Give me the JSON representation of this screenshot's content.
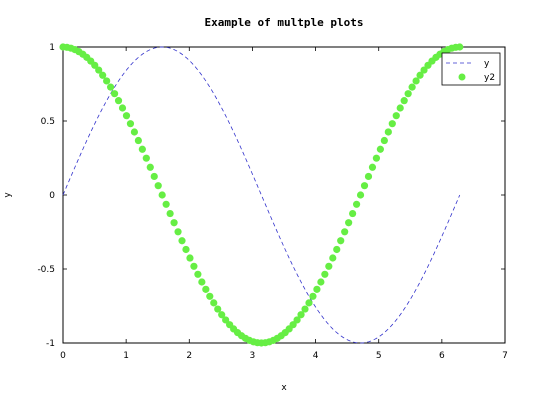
{
  "chart_data": {
    "type": "line",
    "title": "Example of multple plots",
    "xlabel": "x",
    "ylabel": "y",
    "xlim": [
      0,
      7
    ],
    "ylim": [
      -1,
      1
    ],
    "xticks": [
      "0",
      "1",
      "2",
      "3",
      "4",
      "5",
      "6",
      "7"
    ],
    "yticks": [
      "-1",
      "-0.5",
      "0",
      "0.5",
      "1"
    ],
    "legend_position": "top-right",
    "series": [
      {
        "name": "y",
        "style": "dashed-line",
        "color": "#3333cc",
        "function": "sin(x)",
        "x_range": [
          0,
          6.2832
        ],
        "x": [
          0,
          0.5,
          1,
          1.5708,
          2,
          2.5,
          3,
          3.5,
          4,
          4.7124,
          5,
          5.5,
          6,
          6.2832
        ],
        "y": [
          0,
          0.479,
          0.841,
          1,
          0.909,
          0.598,
          0.141,
          -0.351,
          -0.757,
          -1,
          -0.959,
          -0.706,
          -0.279,
          0
        ]
      },
      {
        "name": "y2",
        "style": "markers",
        "color": "#66ee44",
        "function": "cos(x)",
        "x_range": [
          0,
          6.2832
        ],
        "x": [
          0,
          0.5,
          1,
          1.5,
          2,
          2.5,
          3,
          3.1416,
          3.5,
          4,
          4.5,
          5,
          5.5,
          6,
          6.2832
        ],
        "y": [
          1,
          0.878,
          0.54,
          0.071,
          -0.416,
          -0.801,
          -0.99,
          -1,
          -0.936,
          -0.654,
          -0.211,
          0.284,
          0.709,
          0.96,
          1
        ]
      }
    ]
  }
}
